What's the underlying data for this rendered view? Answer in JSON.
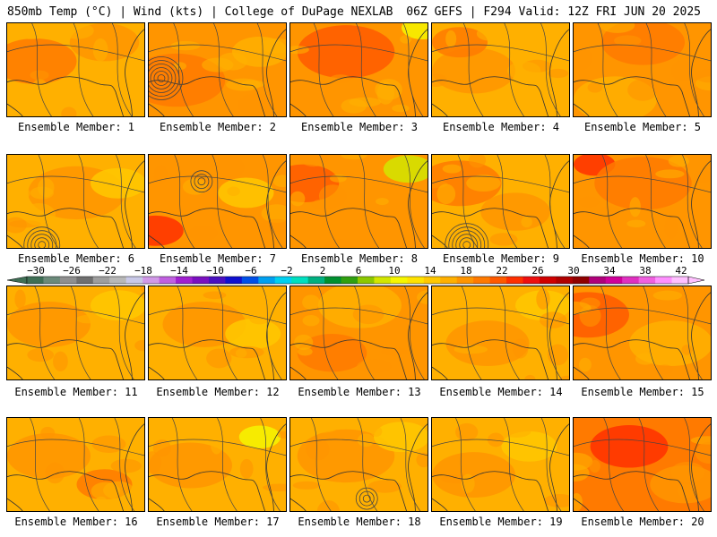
{
  "header": {
    "left_title": "850mb Temp (°C) | Wind (kts) | College of DuPage NEXLAB",
    "right_title": "06Z GEFS | F294 Valid: 12Z FRI JUN 20 2025"
  },
  "colorbar": {
    "labels": [
      "-30",
      "-26",
      "-22",
      "-18",
      "-14",
      "-10",
      "-6",
      "-2",
      "2",
      "6",
      "10",
      "14",
      "18",
      "22",
      "26",
      "30",
      "34",
      "38",
      "42"
    ],
    "colors": [
      "#3f6f55",
      "#6b8a7a",
      "#8f8f8f",
      "#6f6f6f",
      "#9e9e9e",
      "#b8b8b8",
      "#c9c9e8",
      "#d199e8",
      "#c060e0",
      "#a020d0",
      "#7a10c0",
      "#4a10c0",
      "#1010d0",
      "#0050e8",
      "#00a0f0",
      "#00d0f0",
      "#00e0c0",
      "#00b080",
      "#009030",
      "#30a010",
      "#8cc800",
      "#d2e600",
      "#f6f600",
      "#ffe200",
      "#ffc800",
      "#ffb000",
      "#ff9500",
      "#ff7a00",
      "#ff5a00",
      "#ff3000",
      "#ee1010",
      "#d00000",
      "#b00000",
      "#900000",
      "#b0007a",
      "#d0009a",
      "#e030c0",
      "#f060e0",
      "#ff90ff",
      "#ffc0ff"
    ]
  },
  "panels": [
    {
      "caption": "Ensemble Member: 1"
    },
    {
      "caption": "Ensemble Member: 2"
    },
    {
      "caption": "Ensemble Member: 3"
    },
    {
      "caption": "Ensemble Member: 4"
    },
    {
      "caption": "Ensemble Member: 5"
    },
    {
      "caption": "Ensemble Member: 6"
    },
    {
      "caption": "Ensemble Member: 7"
    },
    {
      "caption": "Ensemble Member: 8"
    },
    {
      "caption": "Ensemble Member: 9"
    },
    {
      "caption": "Ensemble Member: 10"
    },
    {
      "caption": "Ensemble Member: 11"
    },
    {
      "caption": "Ensemble Member: 12"
    },
    {
      "caption": "Ensemble Member: 13"
    },
    {
      "caption": "Ensemble Member: 14"
    },
    {
      "caption": "Ensemble Member: 15"
    },
    {
      "caption": "Ensemble Member: 16"
    },
    {
      "caption": "Ensemble Member: 17"
    },
    {
      "caption": "Ensemble Member: 18"
    },
    {
      "caption": "Ensemble Member: 19"
    },
    {
      "caption": "Ensemble Member: 20"
    }
  ]
}
